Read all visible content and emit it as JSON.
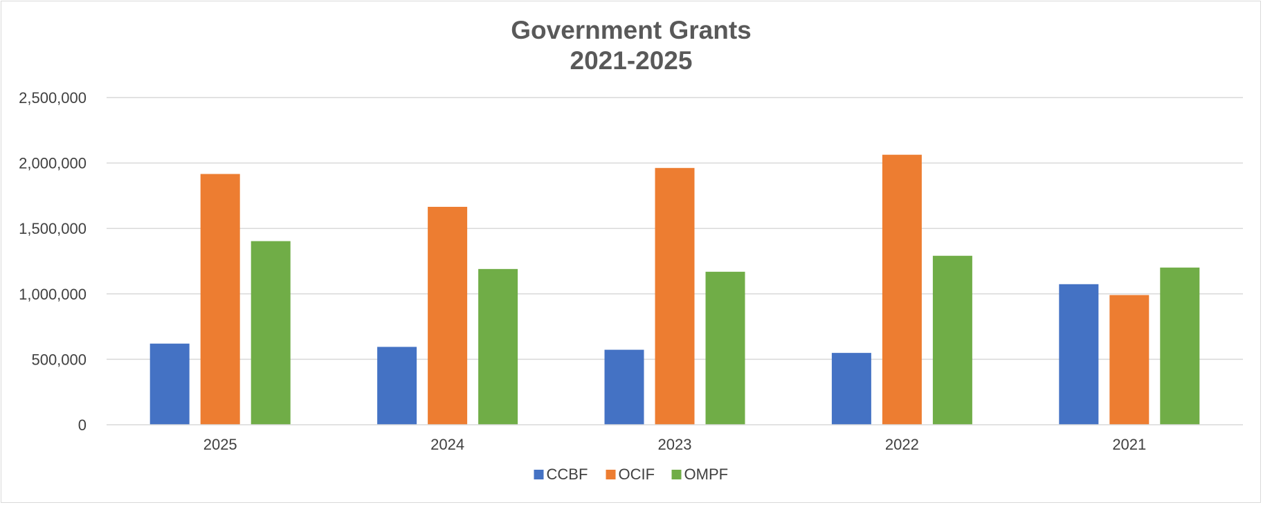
{
  "chart_data": {
    "type": "bar",
    "title": [
      "Government Grants",
      "2021-2025"
    ],
    "categories": [
      "2025",
      "2024",
      "2023",
      "2022",
      "2021"
    ],
    "series": [
      {
        "name": "CCBF",
        "color": "#4472C4",
        "values": [
          620000,
          595000,
          573000,
          549000,
          1074000
        ]
      },
      {
        "name": "OCIF",
        "color": "#ED7D31",
        "values": [
          1916000,
          1665000,
          1962000,
          2063000,
          991000
        ]
      },
      {
        "name": "OMPF",
        "color": "#70AD47",
        "values": [
          1403000,
          1190000,
          1169000,
          1291000,
          1201000
        ]
      }
    ],
    "y_ticks": [
      "0",
      "500,000",
      "1,000,000",
      "1,500,000",
      "2,000,000",
      "2,500,000"
    ],
    "ylim": [
      0,
      2500000
    ],
    "grid": true,
    "legend_position": "bottom",
    "xlabel": "",
    "ylabel": ""
  }
}
